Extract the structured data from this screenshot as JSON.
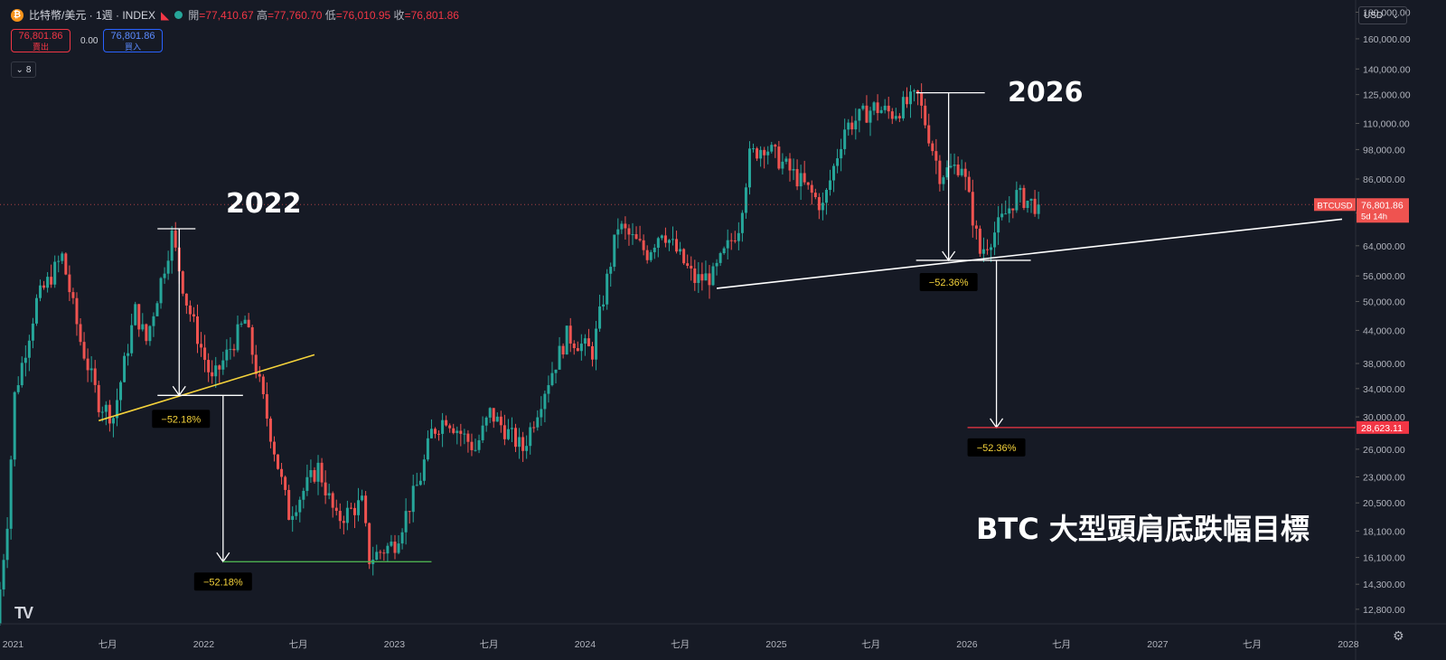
{
  "header": {
    "symbol": "比特幣/美元 · 1週 · INDEX",
    "open_label": "開",
    "open": "=77,410.67",
    "high_label": "高",
    "high": "=77,760.70",
    "low_label": "低",
    "low": "=76,010.95",
    "close_label": "收",
    "close": "=76,801.86",
    "sell_price": "76,801.86",
    "sell_label": "賣出",
    "spread": "0.00",
    "buy_price": "76,801.86",
    "buy_label": "買入",
    "collapse_count": "8",
    "currency": "USD"
  },
  "price_tag": {
    "symbol": "BTCUSD",
    "price": "76,801.86",
    "countdown": "5d 14h"
  },
  "target_tag": "28,623.11",
  "colors": {
    "up": "#26a69a",
    "down": "#ef5350",
    "background": "#161a25",
    "target_line": "#f23645",
    "trend_2022": "#f5d33b",
    "bottom_2022": "#4caf50"
  },
  "chart_data": {
    "type": "candlestick",
    "title": "BTC 大型頭肩底跌幅目標",
    "y_scale": "log",
    "ylim": [
      12000,
      190000
    ],
    "x_range": [
      "2020-12-07",
      "2028-01-15"
    ],
    "y_tick_labels": [
      "180,000.00",
      "160,000.00",
      "140,000.00",
      "125,000.00",
      "110,000.00",
      "98,000.00",
      "86,000.00",
      "74,000.00",
      "64,000.00",
      "56,000.00",
      "50,000.00",
      "44,000.00",
      "38,000.00",
      "34,000.00",
      "30,000.00",
      "26,000.00",
      "23,000.00",
      "20,500.00",
      "18,100.00",
      "16,100.00",
      "14,300.00",
      "12,800.00"
    ],
    "y_tick_values": [
      180000,
      160000,
      140000,
      125000,
      110000,
      98000,
      86000,
      74000,
      64000,
      56000,
      50000,
      44000,
      38000,
      34000,
      30000,
      26000,
      23000,
      20500,
      18100,
      16100,
      14300,
      12800
    ],
    "x_ticks": [
      {
        "label": "2021",
        "date": "2021-01-01"
      },
      {
        "label": "七月",
        "date": "2021-07-01"
      },
      {
        "label": "2022",
        "date": "2022-01-01"
      },
      {
        "label": "七月",
        "date": "2022-07-01"
      },
      {
        "label": "2023",
        "date": "2023-01-01"
      },
      {
        "label": "七月",
        "date": "2023-07-01"
      },
      {
        "label": "2024",
        "date": "2024-01-01"
      },
      {
        "label": "七月",
        "date": "2024-07-01"
      },
      {
        "label": "2025",
        "date": "2025-01-01"
      },
      {
        "label": "七月",
        "date": "2025-07-01"
      },
      {
        "label": "2026",
        "date": "2026-01-01"
      },
      {
        "label": "七月",
        "date": "2026-07-01"
      },
      {
        "label": "2027",
        "date": "2027-01-01"
      },
      {
        "label": "七月",
        "date": "2027-07-01"
      },
      {
        "label": "2028",
        "date": "2028-01-01"
      }
    ],
    "price_path": [
      [
        "2020-12-07",
        12000
      ],
      [
        "2020-12-28",
        19000
      ],
      [
        "2021-01-11",
        33000
      ],
      [
        "2021-02-22",
        50000
      ],
      [
        "2021-04-12",
        61000
      ],
      [
        "2021-05-17",
        42000
      ],
      [
        "2021-06-21",
        32000
      ],
      [
        "2021-07-19",
        30000
      ],
      [
        "2021-08-30",
        48000
      ],
      [
        "2021-09-20",
        42000
      ],
      [
        "2021-11-08",
        67000
      ],
      [
        "2021-12-06",
        50000
      ],
      [
        "2022-01-24",
        35000
      ],
      [
        "2022-03-28",
        46000
      ],
      [
        "2022-05-09",
        30000
      ],
      [
        "2022-06-20",
        19500
      ],
      [
        "2022-08-15",
        24000
      ],
      [
        "2022-09-19",
        19000
      ],
      [
        "2022-11-07",
        20500
      ],
      [
        "2022-11-21",
        16000
      ],
      [
        "2023-01-09",
        17200
      ],
      [
        "2023-02-27",
        23000
      ],
      [
        "2023-03-20",
        28000
      ],
      [
        "2023-04-17",
        30000
      ],
      [
        "2023-06-12",
        26000
      ],
      [
        "2023-07-10",
        30500
      ],
      [
        "2023-09-11",
        26000
      ],
      [
        "2023-10-23",
        34000
      ],
      [
        "2023-12-04",
        43000
      ],
      [
        "2024-01-22",
        40000
      ],
      [
        "2024-03-11",
        70000
      ],
      [
        "2024-05-06",
        62000
      ],
      [
        "2024-06-03",
        69000
      ],
      [
        "2024-08-05",
        55000
      ],
      [
        "2024-09-09",
        56000
      ],
      [
        "2024-10-28",
        70000
      ],
      [
        "2024-11-18",
        95000
      ],
      [
        "2024-12-16",
        100000
      ],
      [
        "2025-02-24",
        85000
      ],
      [
        "2025-04-07",
        76000
      ],
      [
        "2025-05-19",
        108000
      ],
      [
        "2025-07-14",
        118000
      ],
      [
        "2025-08-18",
        115000
      ],
      [
        "2025-10-06",
        124000
      ],
      [
        "2025-11-17",
        88000
      ],
      [
        "2025-12-29",
        92000
      ],
      [
        "2026-02-02",
        62000
      ],
      [
        "2026-03-02",
        68000
      ],
      [
        "2026-04-13",
        80000
      ],
      [
        "2026-05-18",
        76800
      ]
    ],
    "annotations": {
      "labels_2022": "2022",
      "labels_2026": "2026",
      "pct_2022_top": "−52.18%",
      "pct_2022_bottom": "−52.18%",
      "pct_2026_top": "−52.36%",
      "pct_2026_bottom": "−52.36%",
      "target_price": 28623.11,
      "last_price": 76801.86,
      "neckline_2022": {
        "start": [
          "2021-06-14",
          29500
        ],
        "end": [
          "2022-08-01",
          39500
        ]
      },
      "measure_2022": {
        "top": [
          "2021-11-15",
          69000
        ],
        "bottom": [
          "2022-01-10",
          33000
        ],
        "target": [
          "2022-02-07",
          15800
        ]
      },
      "bottom_2022": {
        "start": [
          "2022-02-07",
          15800
        ],
        "end": [
          "2023-03-13",
          15800
        ]
      },
      "neckline_2026": {
        "start": [
          "2024-09-09",
          53000
        ],
        "end": [
          "2027-12-20",
          72000
        ]
      },
      "measure_2026": {
        "top": [
          "2025-10-06",
          126000
        ],
        "bottom": [
          "2025-12-15",
          60000
        ],
        "target": [
          "2026-02-23",
          28623
        ]
      }
    }
  }
}
